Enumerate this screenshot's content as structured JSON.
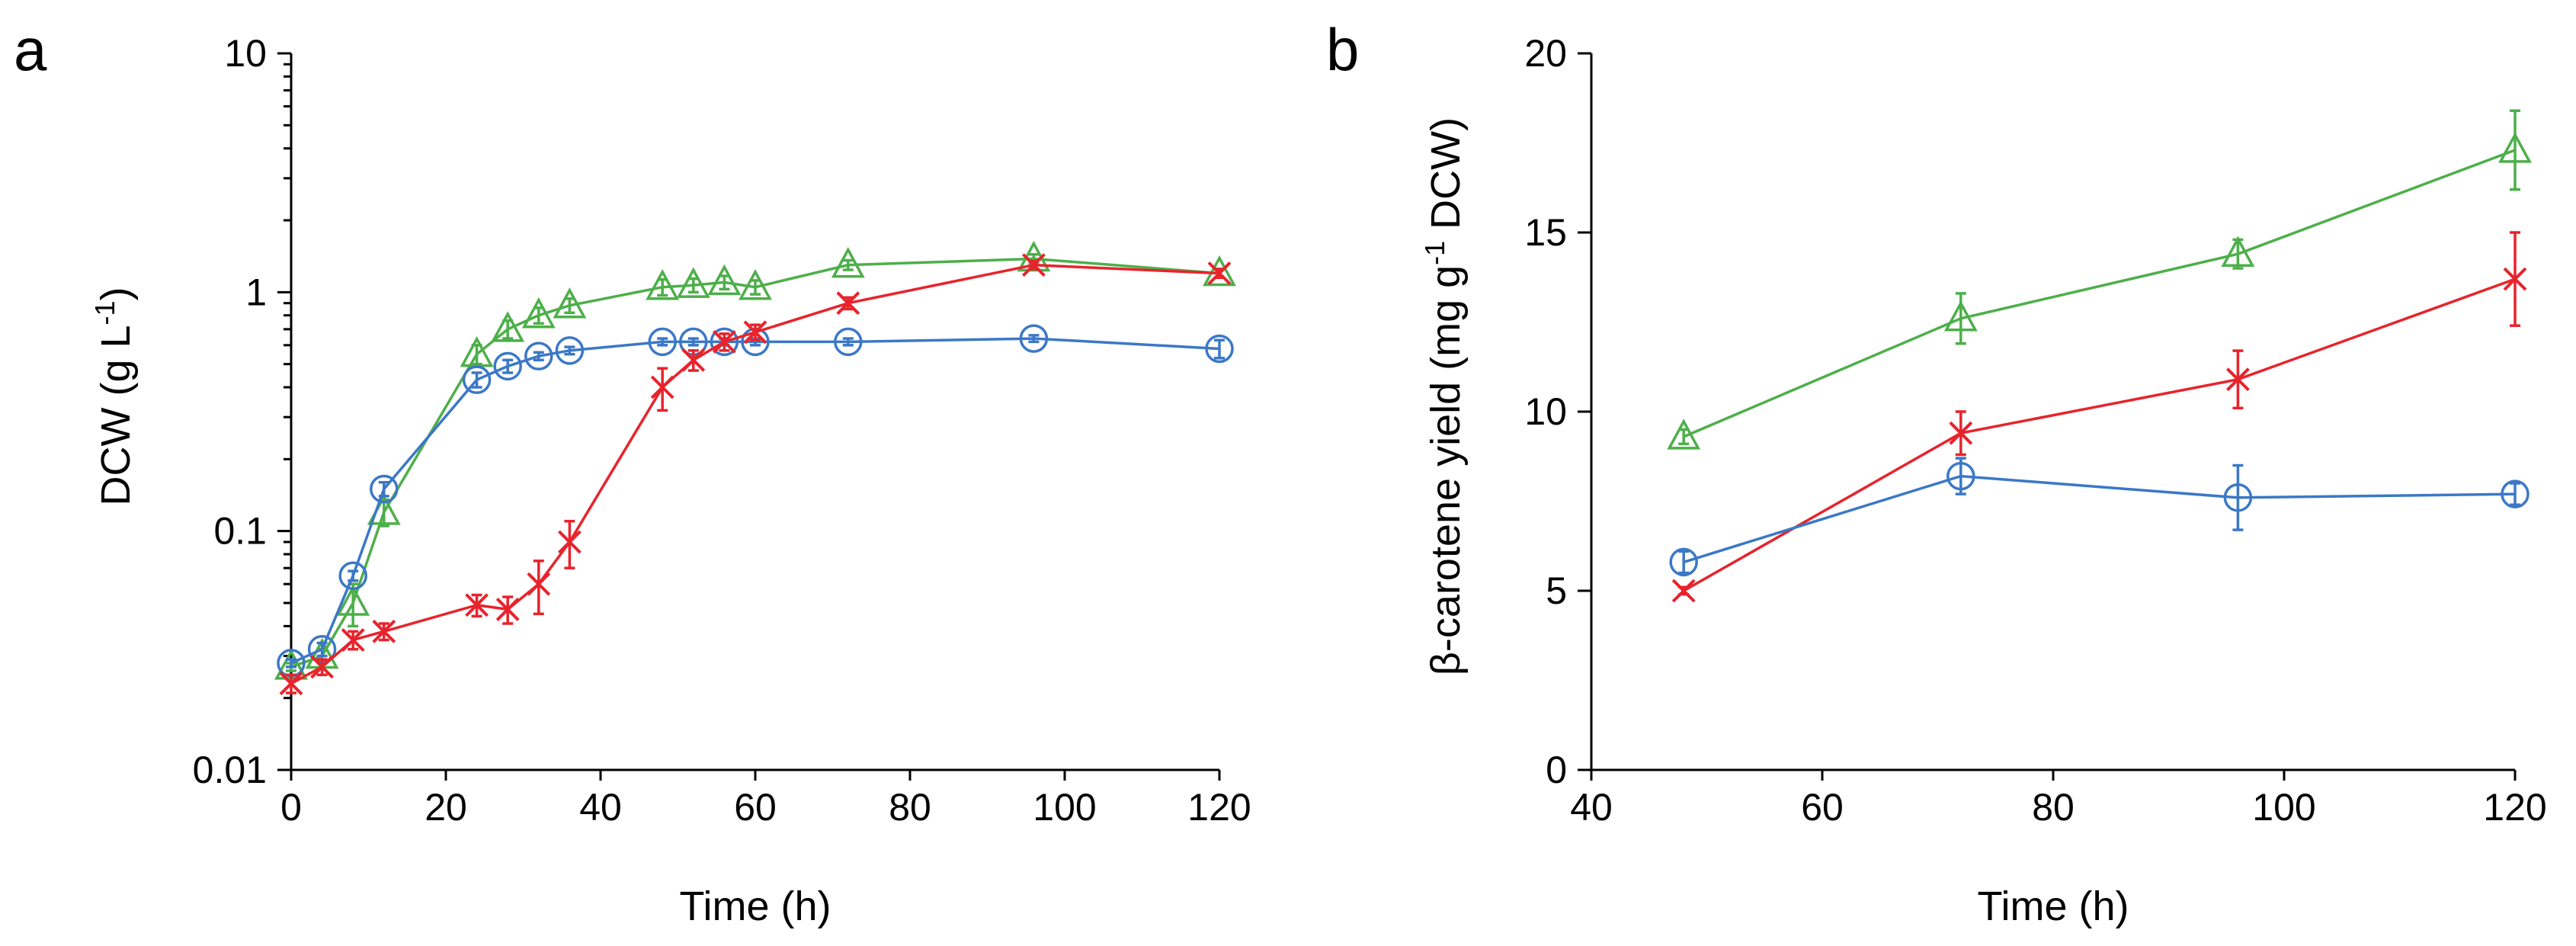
{
  "chart_data": [
    {
      "panel_label": "a",
      "type": "line",
      "x_scale": "linear",
      "y_scale": "log",
      "xlabel": "Time (h)",
      "ylabel": "DCW (g L",
      "ylabel_sup": "-1",
      "ylabel_close": ")",
      "xlim": [
        0,
        120
      ],
      "ylim": [
        0.01,
        10
      ],
      "x_ticks": [
        0,
        20,
        40,
        60,
        80,
        100,
        120
      ],
      "x_tick_labels": [
        "0",
        "20",
        "40",
        "60",
        "80",
        "100",
        "120"
      ],
      "y_ticks": [
        0.01,
        0.1,
        1,
        10
      ],
      "y_tick_labels": [
        "0.01",
        "0.1",
        "1",
        "10"
      ],
      "grid": false,
      "series": [
        {
          "name": "green-triangle",
          "color": "#4daf4a",
          "marker": "triangle",
          "x": [
            0,
            4,
            8,
            12,
            24,
            28,
            32,
            36,
            48,
            52,
            56,
            60,
            72,
            96,
            120
          ],
          "y": [
            0.027,
            0.03,
            0.05,
            0.12,
            0.55,
            0.7,
            0.8,
            0.88,
            1.05,
            1.07,
            1.1,
            1.05,
            1.3,
            1.38,
            1.2
          ],
          "err": [
            0.001,
            0.002,
            0.01,
            0.015,
            0.05,
            0.06,
            0.06,
            0.06,
            0.08,
            0.07,
            0.07,
            0.07,
            0.06,
            0.06,
            0.05
          ]
        },
        {
          "name": "blue-circle",
          "color": "#3b78c7",
          "marker": "circle",
          "x": [
            0,
            4,
            8,
            12,
            24,
            28,
            32,
            36,
            48,
            52,
            56,
            60,
            72,
            96,
            120
          ],
          "y": [
            0.028,
            0.032,
            0.065,
            0.15,
            0.43,
            0.49,
            0.54,
            0.57,
            0.62,
            0.62,
            0.62,
            0.62,
            0.62,
            0.64,
            0.58
          ],
          "err": [
            0.001,
            0.002,
            0.003,
            0.01,
            0.03,
            0.03,
            0.02,
            0.02,
            0.02,
            0.02,
            0.02,
            0.02,
            0.02,
            0.02,
            0.05
          ]
        },
        {
          "name": "red-cross",
          "color": "#e8232c",
          "marker": "x",
          "x": [
            0,
            4,
            8,
            12,
            24,
            28,
            32,
            36,
            48,
            52,
            56,
            60,
            72,
            96,
            120
          ],
          "y": [
            0.023,
            0.027,
            0.035,
            0.038,
            0.049,
            0.047,
            0.06,
            0.09,
            0.4,
            0.52,
            0.62,
            0.68,
            0.9,
            1.3,
            1.2
          ],
          "err": [
            0.002,
            0.002,
            0.003,
            0.003,
            0.005,
            0.006,
            0.015,
            0.02,
            0.08,
            0.05,
            0.05,
            0.05,
            0.05,
            0.05,
            0.05
          ]
        }
      ]
    },
    {
      "panel_label": "b",
      "type": "line",
      "x_scale": "linear",
      "y_scale": "linear",
      "xlabel": "Time (h)",
      "ylabel": "β-carotene yield (mg g",
      "ylabel_sup": "-1",
      "ylabel_close": " DCW)",
      "xlim": [
        40,
        120
      ],
      "ylim": [
        0,
        20
      ],
      "x_ticks": [
        40,
        60,
        80,
        100,
        120
      ],
      "x_tick_labels": [
        "40",
        "60",
        "80",
        "100",
        "120"
      ],
      "y_ticks": [
        0,
        5,
        10,
        15,
        20
      ],
      "y_tick_labels": [
        "0",
        "5",
        "10",
        "15",
        "20"
      ],
      "grid": false,
      "series": [
        {
          "name": "green-triangle",
          "color": "#4daf4a",
          "marker": "triangle",
          "x": [
            48,
            72,
            96,
            120
          ],
          "y": [
            9.3,
            12.6,
            14.4,
            17.3
          ],
          "err": [
            0.2,
            0.7,
            0.4,
            1.1
          ]
        },
        {
          "name": "red-cross",
          "color": "#e8232c",
          "marker": "x",
          "x": [
            48,
            72,
            96,
            120
          ],
          "y": [
            5.0,
            9.4,
            10.9,
            13.7
          ],
          "err": [
            0.1,
            0.6,
            0.8,
            1.3
          ]
        },
        {
          "name": "blue-circle",
          "color": "#3b78c7",
          "marker": "circle",
          "x": [
            48,
            72,
            96,
            120
          ],
          "y": [
            5.8,
            8.2,
            7.6,
            7.7
          ],
          "err": [
            0.3,
            0.5,
            0.9,
            0.3
          ]
        }
      ]
    }
  ]
}
